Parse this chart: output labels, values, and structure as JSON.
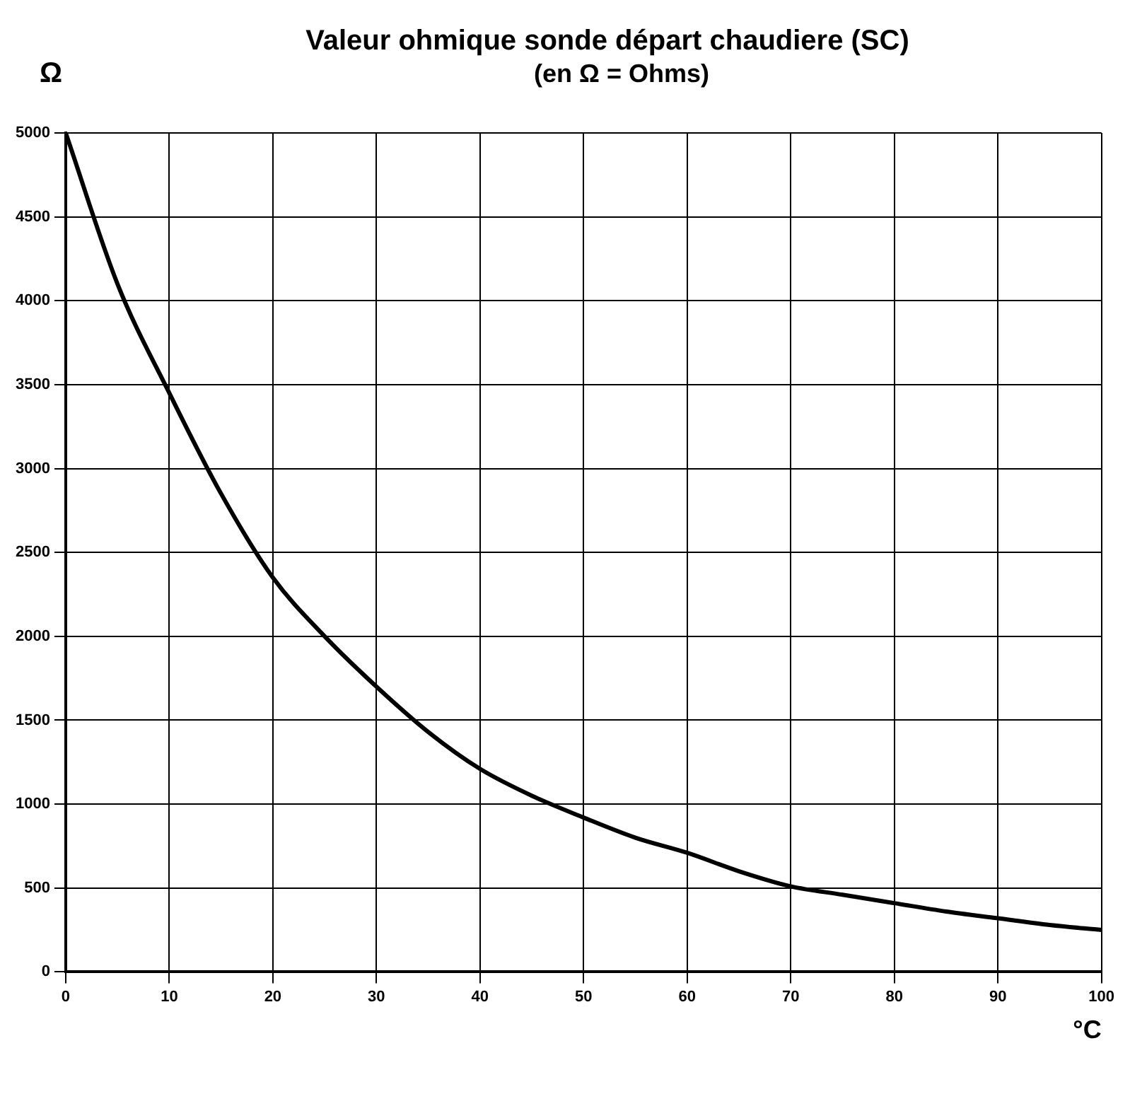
{
  "chart_data": {
    "type": "line",
    "title": "Valeur ohmique sonde départ chaudiere (SC)",
    "subtitle": "(en Ω = Ohms)",
    "xlabel": "°C",
    "ylabel": "Ω",
    "x": [
      0,
      5,
      10,
      15,
      20,
      25,
      30,
      35,
      40,
      45,
      50,
      55,
      60,
      65,
      70,
      75,
      80,
      85,
      90,
      95,
      100
    ],
    "series": [
      {
        "color": "#000000",
        "values": [
          5000,
          4100,
          3450,
          2850,
          2350,
          2000,
          1700,
          1430,
          1210,
          1050,
          920,
          800,
          710,
          600,
          510,
          460,
          410,
          360,
          320,
          280,
          250
        ]
      }
    ],
    "xlim": [
      0,
      100
    ],
    "xticks": [
      0,
      10,
      20,
      30,
      40,
      50,
      60,
      70,
      80,
      90,
      100
    ],
    "ylim": [
      0,
      5000
    ],
    "yticks": [
      0,
      500,
      1000,
      1500,
      2000,
      2500,
      3000,
      3500,
      4000,
      4500,
      5000
    ],
    "grid": true,
    "legend": false,
    "marker": "none",
    "line_style": "solid"
  }
}
